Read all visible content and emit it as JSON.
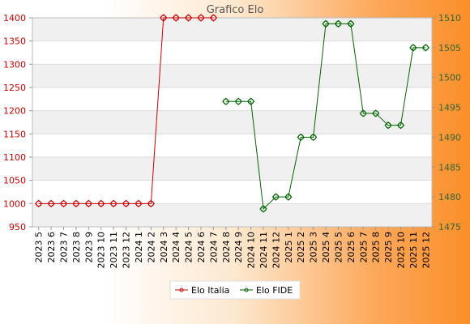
{
  "chart_data": {
    "type": "line",
    "title": "Grafico Elo",
    "categories": [
      "2023 5",
      "2023 6",
      "2023 7",
      "2023 8",
      "2023 9",
      "2023 10",
      "2023 11",
      "2023 12",
      "2024 1",
      "2024 2",
      "2024 3",
      "2024 4",
      "2024 5",
      "2024 6",
      "2024 7",
      "2024 8",
      "2024 9",
      "2024 10",
      "2024 11",
      "2024 12",
      "2025 1",
      "2025 2",
      "2025 3",
      "2025 4",
      "2025 5",
      "2025 6",
      "2025 7",
      "2025 8",
      "2025 9",
      "2025 10",
      "2025 11",
      "2025 12"
    ],
    "series": [
      {
        "name": "Elo Italia",
        "axis": "left",
        "color": "#cc0000",
        "values": [
          1000,
          1000,
          1000,
          1000,
          1000,
          1000,
          1000,
          1000,
          1000,
          1000,
          1400,
          1400,
          1400,
          1400,
          1400,
          null,
          null,
          null,
          null,
          null,
          null,
          null,
          null,
          null,
          null,
          null,
          null,
          null,
          null,
          null,
          null,
          null
        ]
      },
      {
        "name": "Elo FIDE",
        "axis": "right",
        "color": "#006600",
        "values": [
          null,
          null,
          null,
          null,
          null,
          null,
          null,
          null,
          null,
          null,
          null,
          null,
          null,
          null,
          null,
          1496,
          1496,
          1496,
          1478,
          1480,
          1480,
          1490,
          1490,
          1509,
          1509,
          1509,
          1494,
          1494,
          1492,
          1492,
          1505,
          1505
        ]
      }
    ],
    "yaxis_left": {
      "min": 950,
      "max": 1400,
      "ticks": [
        950,
        1000,
        1050,
        1100,
        1150,
        1200,
        1250,
        1300,
        1350,
        1400
      ],
      "color": "#cc0000"
    },
    "yaxis_right": {
      "min": 1475,
      "max": 1510,
      "ticks": [
        1475,
        1480,
        1485,
        1490,
        1495,
        1500,
        1505,
        1510
      ],
      "color": "#336633"
    },
    "grid": true,
    "legend_position": "bottom"
  }
}
